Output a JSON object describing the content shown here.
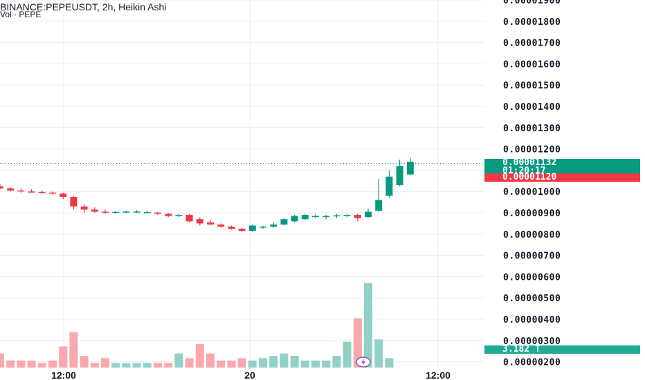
{
  "header": {
    "title": "BINANCE:PEPEUSDT, 2h, Heikin Ashi",
    "volume_label": "Vol · PEPE"
  },
  "price_tags": {
    "last_price": "0.00001132",
    "countdown": "01:20:17",
    "prev_price": "0.00001120",
    "volume": "3.182 T"
  },
  "colors": {
    "up": "#089981",
    "down": "#f23645",
    "vol_up": "#92d1c7",
    "vol_down": "#f9a9ae",
    "grid": "#ececec",
    "text": "#131722"
  },
  "icons": [
    "lightning-icon"
  ],
  "chart_data": {
    "type": "candlestick",
    "style": "Heikin Ashi",
    "symbol": "BINANCE:PEPEUSDT",
    "interval": "2h",
    "y_ticks": [
      "0.00001900",
      "0.00001800",
      "0.00001700",
      "0.00001600",
      "0.00001500",
      "0.00001400",
      "0.00001300",
      "0.00001200",
      "0.00001100",
      "0.00001000",
      "0.00000900",
      "0.00000800",
      "0.00000700",
      "0.00000600",
      "0.00000500",
      "0.00000400",
      "0.00000300",
      "0.00000200"
    ],
    "y_range": [
      1.9e-06,
      1.91e-05
    ],
    "x_ticks": [
      "12:00",
      "20",
      "12:00"
    ],
    "grid": true,
    "last_price_line": 1.132e-05,
    "candles": [
      {
        "o": 10.25,
        "h": 10.35,
        "l": 10.1,
        "c": 10.15,
        "up": false
      },
      {
        "o": 10.15,
        "h": 10.2,
        "l": 10.0,
        "c": 10.05,
        "up": false
      },
      {
        "o": 10.05,
        "h": 10.15,
        "l": 9.95,
        "c": 10.0,
        "up": false
      },
      {
        "o": 10.0,
        "h": 10.1,
        "l": 9.95,
        "c": 9.98,
        "up": false
      },
      {
        "o": 9.98,
        "h": 10.05,
        "l": 9.9,
        "c": 9.95,
        "up": false
      },
      {
        "o": 9.95,
        "h": 10.0,
        "l": 9.85,
        "c": 9.9,
        "up": false
      },
      {
        "o": 9.9,
        "h": 9.95,
        "l": 9.65,
        "c": 9.75,
        "up": false
      },
      {
        "o": 9.75,
        "h": 9.8,
        "l": 9.15,
        "c": 9.3,
        "up": false
      },
      {
        "o": 9.3,
        "h": 9.4,
        "l": 9.0,
        "c": 9.15,
        "up": false
      },
      {
        "o": 9.15,
        "h": 9.25,
        "l": 9.0,
        "c": 9.05,
        "up": false
      },
      {
        "o": 9.05,
        "h": 9.15,
        "l": 8.95,
        "c": 9.02,
        "up": false
      },
      {
        "o": 9.02,
        "h": 9.1,
        "l": 8.95,
        "c": 9.04,
        "up": true
      },
      {
        "o": 9.04,
        "h": 9.1,
        "l": 8.98,
        "c": 9.06,
        "up": true
      },
      {
        "o": 9.06,
        "h": 9.12,
        "l": 9.0,
        "c": 9.03,
        "up": true
      },
      {
        "o": 9.03,
        "h": 9.1,
        "l": 8.98,
        "c": 9.01,
        "up": true
      },
      {
        "o": 9.01,
        "h": 9.05,
        "l": 8.9,
        "c": 8.95,
        "up": false
      },
      {
        "o": 8.95,
        "h": 9.0,
        "l": 8.8,
        "c": 8.85,
        "up": false
      },
      {
        "o": 8.85,
        "h": 8.95,
        "l": 8.8,
        "c": 8.9,
        "up": true
      },
      {
        "o": 8.9,
        "h": 8.95,
        "l": 8.55,
        "c": 8.6,
        "up": false
      },
      {
        "o": 8.7,
        "h": 8.8,
        "l": 8.4,
        "c": 8.5,
        "up": false
      },
      {
        "o": 8.55,
        "h": 8.65,
        "l": 8.4,
        "c": 8.45,
        "up": false
      },
      {
        "o": 8.45,
        "h": 8.5,
        "l": 8.3,
        "c": 8.35,
        "up": false
      },
      {
        "o": 8.35,
        "h": 8.4,
        "l": 8.2,
        "c": 8.25,
        "up": false
      },
      {
        "o": 8.25,
        "h": 8.3,
        "l": 8.1,
        "c": 8.15,
        "up": false
      },
      {
        "o": 8.15,
        "h": 8.45,
        "l": 8.1,
        "c": 8.4,
        "up": true
      },
      {
        "o": 8.3,
        "h": 8.4,
        "l": 8.25,
        "c": 8.35,
        "up": true
      },
      {
        "o": 8.35,
        "h": 8.55,
        "l": 8.3,
        "c": 8.45,
        "up": true
      },
      {
        "o": 8.45,
        "h": 8.75,
        "l": 8.4,
        "c": 8.7,
        "up": true
      },
      {
        "o": 8.6,
        "h": 8.9,
        "l": 8.55,
        "c": 8.85,
        "up": true
      },
      {
        "o": 8.7,
        "h": 8.95,
        "l": 8.65,
        "c": 8.9,
        "up": true
      },
      {
        "o": 8.85,
        "h": 8.95,
        "l": 8.75,
        "c": 8.85,
        "up": true
      },
      {
        "o": 8.8,
        "h": 8.9,
        "l": 8.7,
        "c": 8.85,
        "up": true
      },
      {
        "o": 8.85,
        "h": 8.95,
        "l": 8.75,
        "c": 8.88,
        "up": true
      },
      {
        "o": 8.85,
        "h": 8.95,
        "l": 8.8,
        "c": 8.9,
        "up": true
      },
      {
        "o": 8.9,
        "h": 8.95,
        "l": 8.6,
        "c": 8.75,
        "up": false
      },
      {
        "o": 8.8,
        "h": 9.2,
        "l": 8.75,
        "c": 9.05,
        "up": true
      },
      {
        "o": 9.1,
        "h": 10.6,
        "l": 9.05,
        "c": 9.6,
        "up": true
      },
      {
        "o": 9.8,
        "h": 11.0,
        "l": 9.7,
        "c": 10.7,
        "up": true
      },
      {
        "o": 10.3,
        "h": 11.5,
        "l": 10.25,
        "c": 11.2,
        "up": true
      },
      {
        "o": 10.8,
        "h": 11.6,
        "l": 10.75,
        "c": 11.4,
        "up": true
      }
    ],
    "volume": [
      6,
      3,
      3,
      3,
      2,
      3,
      9,
      15,
      5,
      2,
      4,
      2,
      2,
      2,
      2,
      2,
      2,
      6,
      4,
      10,
      6,
      3,
      3,
      4,
      3,
      4,
      5,
      6,
      5,
      3,
      3,
      3,
      5,
      11,
      21,
      36,
      12,
      4,
      0,
      0
    ]
  }
}
